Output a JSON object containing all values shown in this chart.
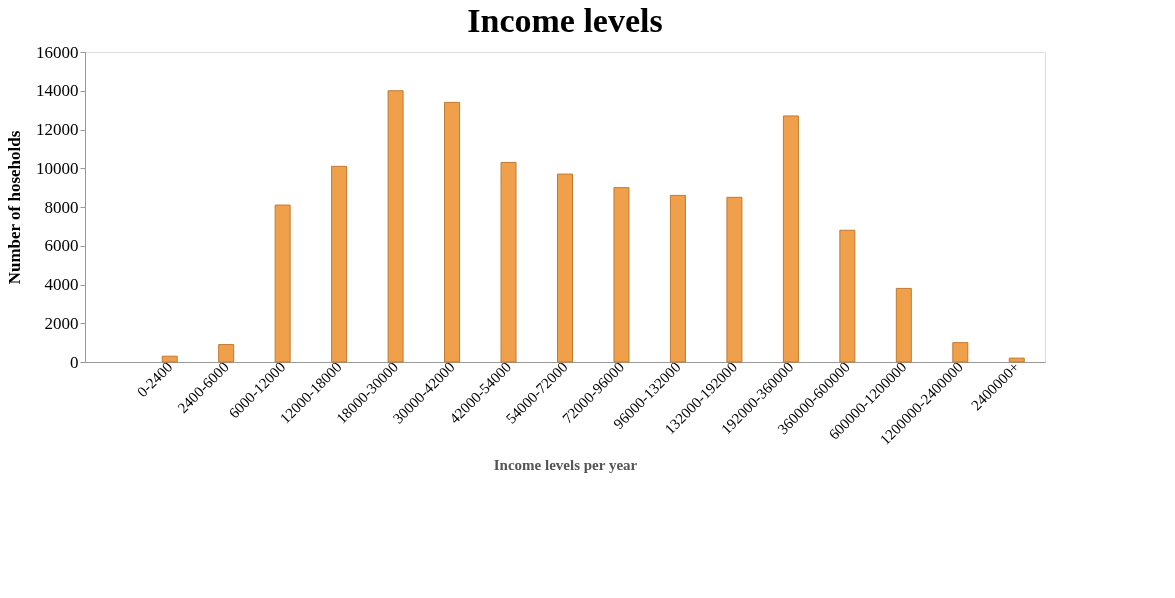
{
  "chart_data": {
    "type": "bar",
    "title": "Income levels",
    "xlabel": "Income levels per year",
    "ylabel": "Number of hoseholds",
    "categories": [
      null,
      "0-2400",
      "2400-6000",
      "6000-12000",
      "12000-18000",
      "18000-30000",
      "30000-42000",
      "42000-54000",
      "54000-72000",
      "72000-96000",
      "96000-132000",
      "132000-192000",
      "192000-360000",
      "360000-600000",
      "600000-1200000",
      "1200000-2400000",
      "2400000+"
    ],
    "values": [
      null,
      300,
      900,
      8100,
      10100,
      14000,
      13400,
      10300,
      9700,
      9000,
      8600,
      8500,
      12700,
      6800,
      3800,
      1000,
      200
    ],
    "color": "#f0a04b",
    "ylim": [
      0,
      16000
    ],
    "yticks": [
      0,
      2000,
      4000,
      6000,
      8000,
      10000,
      12000,
      14000,
      16000
    ],
    "grid": false
  }
}
